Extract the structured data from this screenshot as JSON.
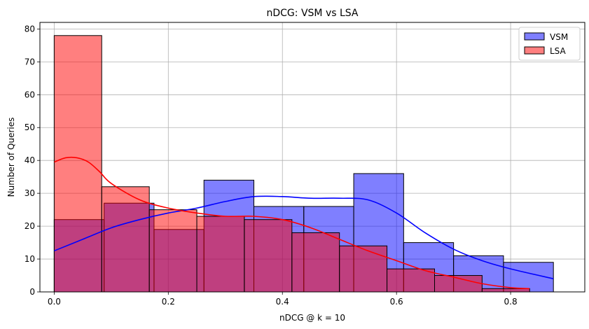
{
  "chart_data": {
    "type": "histogram",
    "title": "nDCG: VSM vs LSA",
    "xlabel": "nDCG @ k = 10",
    "ylabel": "Number of Queries",
    "xlim": [
      -0.025,
      0.93
    ],
    "ylim": [
      0,
      82
    ],
    "xticks": [
      0.0,
      0.2,
      0.4,
      0.6,
      0.8
    ],
    "xtick_labels": [
      "0.0",
      "0.2",
      "0.4",
      "0.6",
      "0.8"
    ],
    "yticks": [
      0,
      10,
      20,
      30,
      40,
      50,
      60,
      70,
      80
    ],
    "ytick_labels": [
      "0",
      "10",
      "20",
      "30",
      "40",
      "50",
      "60",
      "70",
      "80"
    ],
    "grid": true,
    "legend_position": "top-right",
    "series": [
      {
        "name": "VSM",
        "color": "#0000ff",
        "alpha": 0.5,
        "bins": [
          {
            "x0": 0.0,
            "x1": 0.0875,
            "count": 22
          },
          {
            "x0": 0.0875,
            "x1": 0.175,
            "count": 27
          },
          {
            "x0": 0.175,
            "x1": 0.2625,
            "count": 19
          },
          {
            "x0": 0.2625,
            "x1": 0.35,
            "count": 34
          },
          {
            "x0": 0.35,
            "x1": 0.4375,
            "count": 26
          },
          {
            "x0": 0.4375,
            "x1": 0.525,
            "count": 26
          },
          {
            "x0": 0.525,
            "x1": 0.6125,
            "count": 36
          },
          {
            "x0": 0.6125,
            "x1": 0.7,
            "count": 15
          },
          {
            "x0": 0.7,
            "x1": 0.7875,
            "count": 11
          },
          {
            "x0": 0.7875,
            "x1": 0.875,
            "count": 9
          }
        ],
        "kde": {
          "x": [
            0.0,
            0.05,
            0.1,
            0.15,
            0.2,
            0.25,
            0.3,
            0.35,
            0.4,
            0.45,
            0.5,
            0.55,
            0.6,
            0.65,
            0.7,
            0.75,
            0.8,
            0.875
          ],
          "y": [
            12.5,
            16,
            19.5,
            22,
            24,
            25.5,
            27.5,
            29,
            29,
            28.5,
            28.5,
            28,
            24,
            18,
            13,
            9.5,
            7,
            4
          ]
        }
      },
      {
        "name": "LSA",
        "color": "#ff0000",
        "alpha": 0.5,
        "bins": [
          {
            "x0": 0.0,
            "x1": 0.0833,
            "count": 78
          },
          {
            "x0": 0.0833,
            "x1": 0.1667,
            "count": 32
          },
          {
            "x0": 0.1667,
            "x1": 0.25,
            "count": 25
          },
          {
            "x0": 0.25,
            "x1": 0.3333,
            "count": 23
          },
          {
            "x0": 0.3333,
            "x1": 0.4167,
            "count": 22
          },
          {
            "x0": 0.4167,
            "x1": 0.5,
            "count": 18
          },
          {
            "x0": 0.5,
            "x1": 0.5833,
            "count": 14
          },
          {
            "x0": 0.5833,
            "x1": 0.6667,
            "count": 7
          },
          {
            "x0": 0.6667,
            "x1": 0.75,
            "count": 5
          },
          {
            "x0": 0.75,
            "x1": 0.8333,
            "count": 1
          }
        ],
        "kde": {
          "x": [
            0.0,
            0.02,
            0.04,
            0.06,
            0.08,
            0.1,
            0.15,
            0.2,
            0.25,
            0.3,
            0.35,
            0.4,
            0.45,
            0.5,
            0.55,
            0.6,
            0.65,
            0.7,
            0.75,
            0.8,
            0.833
          ],
          "y": [
            39.5,
            40.8,
            40.8,
            39.5,
            36.5,
            33,
            28,
            25.5,
            24,
            23,
            23,
            22,
            19.5,
            16,
            12.5,
            9.5,
            6.5,
            4.5,
            2.5,
            1.3,
            1
          ]
        }
      }
    ]
  }
}
